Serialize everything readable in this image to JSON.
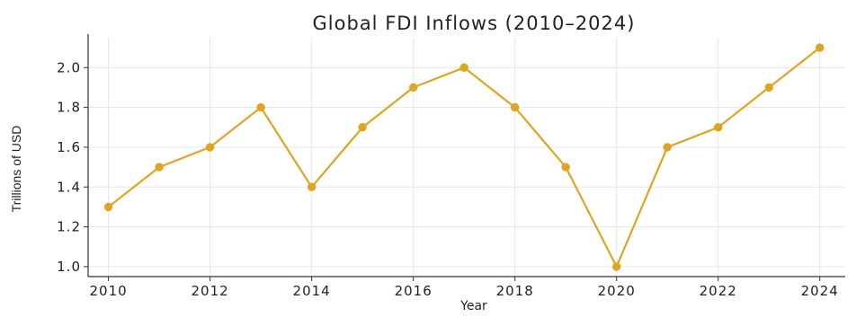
{
  "chart_data": {
    "type": "line",
    "title": "Global FDI Inflows (2010–2024)",
    "xlabel": "Year",
    "ylabel": "Trillions of USD",
    "x": [
      2010,
      2011,
      2012,
      2013,
      2014,
      2015,
      2016,
      2017,
      2018,
      2019,
      2020,
      2021,
      2022,
      2023,
      2024
    ],
    "series": [
      {
        "values": [
          1.3,
          1.5,
          1.6,
          1.8,
          1.4,
          1.7,
          1.9,
          2.0,
          1.8,
          1.5,
          1.0,
          1.6,
          1.7,
          1.9,
          2.1
        ]
      }
    ],
    "xlim": [
      2009.6,
      2024.5
    ],
    "ylim": [
      0.95,
      2.15
    ],
    "x_ticks": [
      2010,
      2012,
      2014,
      2016,
      2018,
      2020,
      2022,
      2024
    ],
    "y_ticks": [
      1.0,
      1.2,
      1.4,
      1.6,
      1.8,
      2.0
    ],
    "x_tick_labels": [
      "2010",
      "2012",
      "2014",
      "2016",
      "2018",
      "2020",
      "2022",
      "2024"
    ],
    "y_tick_labels": [
      "1.0",
      "1.2",
      "1.4",
      "1.6",
      "1.8",
      "2.0"
    ],
    "grid": true,
    "line_color": "#e0a422",
    "marker": "circle"
  }
}
